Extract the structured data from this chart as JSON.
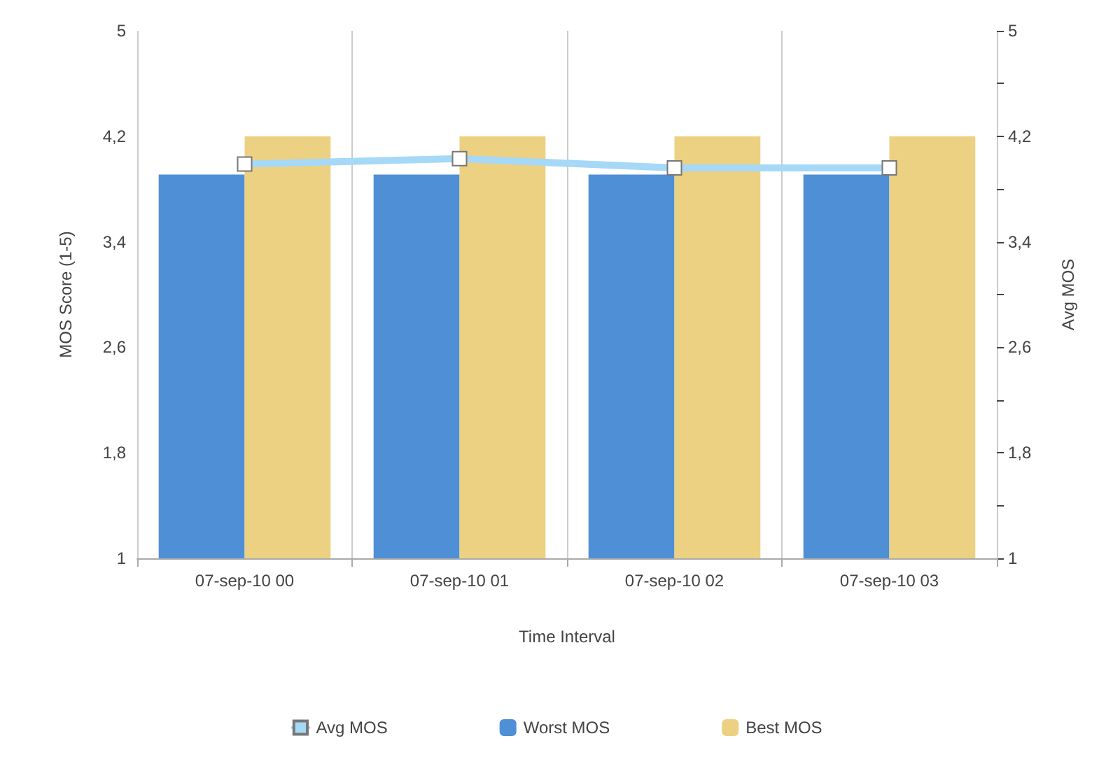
{
  "chart_data": {
    "type": "bar",
    "xlabel": "Time Interval",
    "ylabel": "MOS Score (1-5)",
    "y2label": "Avg MOS",
    "categories": [
      "07-sep-10 00",
      "07-sep-10 01",
      "07-sep-10 02",
      "07-sep-10 03"
    ],
    "series": [
      {
        "name": "Avg MOS",
        "type": "line",
        "axis": "y2",
        "color": "#a6d8f7",
        "values": [
          3.99,
          4.03,
          3.96,
          3.96
        ]
      },
      {
        "name": "Worst MOS",
        "color": "#4f8fd6",
        "values": [
          3.91,
          3.91,
          3.91,
          3.91
        ]
      },
      {
        "name": "Best MOS",
        "color": "#ecd182",
        "values": [
          4.2,
          4.2,
          4.2,
          4.2
        ]
      }
    ],
    "ylim": [
      1,
      5
    ],
    "yticks": [
      1,
      {
        "value": 1.8,
        "label": "1,8"
      },
      {
        "value": 2.6,
        "label": "2,6"
      },
      {
        "value": 3.4,
        "label": "3,4"
      },
      {
        "value": 4.2,
        "label": "4,2"
      },
      5
    ],
    "y2lim": [
      1,
      5
    ],
    "y2ticks": [
      1,
      {
        "value": 1.4,
        "label": null
      },
      {
        "value": 1.8,
        "label": "1,8"
      },
      {
        "value": 2.2,
        "label": null
      },
      {
        "value": 2.6,
        "label": "2,6"
      },
      {
        "value": 3.0,
        "label": null
      },
      {
        "value": 3.4,
        "label": "3,4"
      },
      {
        "value": 3.8,
        "label": null
      },
      {
        "value": 4.2,
        "label": "4,2"
      },
      {
        "value": 4.6,
        "label": null
      },
      5
    ],
    "grid": "x",
    "legend": "bottom",
    "marker": "square",
    "line_style": "solid"
  }
}
